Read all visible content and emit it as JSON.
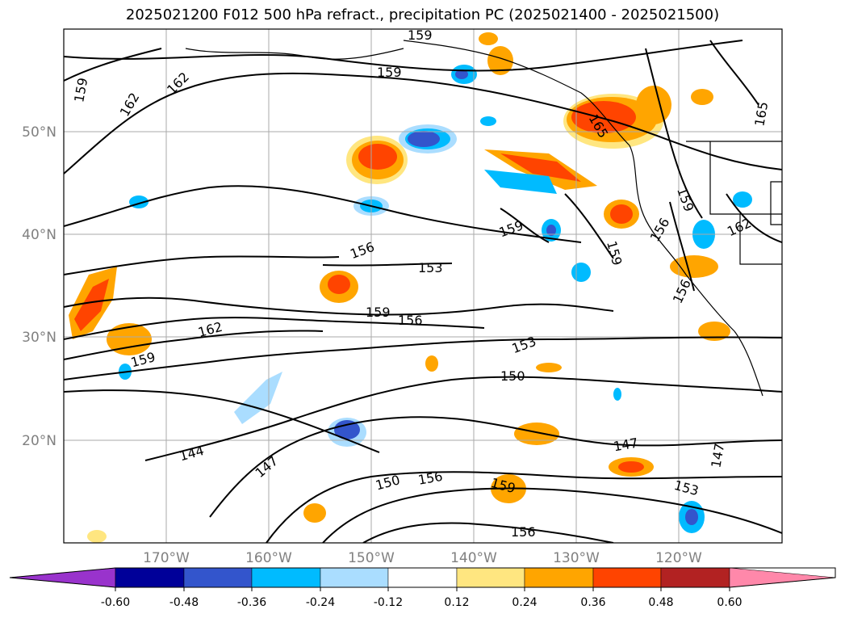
{
  "title": "2025021200 F012 500 hPa refract., precipitation PC (2025021400 - 2025021500)",
  "lat_labels": [
    "50°N",
    "40°N",
    "30°N",
    "20°N"
  ],
  "lon_labels": [
    "170°W",
    "160°W",
    "150°W",
    "140°W",
    "130°W",
    "120°W"
  ],
  "contour_labels": [
    "159",
    "159",
    "162",
    "162",
    "165",
    "159",
    "156",
    "153",
    "159",
    "156",
    "159",
    "162",
    "159",
    "159",
    "156",
    "153",
    "150",
    "147",
    "144",
    "150",
    "156",
    "159",
    "156",
    "147",
    "147",
    "153",
    "159",
    "156",
    "165",
    "162"
  ],
  "colorbar": {
    "ticks": [
      "-0.60",
      "-0.48",
      "-0.36",
      "-0.24",
      "-0.12",
      "0.12",
      "0.24",
      "0.36",
      "0.48",
      "0.60"
    ],
    "colors": [
      "#9933cc",
      "#000099",
      "#3355cc",
      "#00bbff",
      "#aaddff",
      "#ffffff",
      "#ffe680",
      "#ffa500",
      "#ff4400",
      "#b22222",
      "#ff88aa"
    ]
  }
}
